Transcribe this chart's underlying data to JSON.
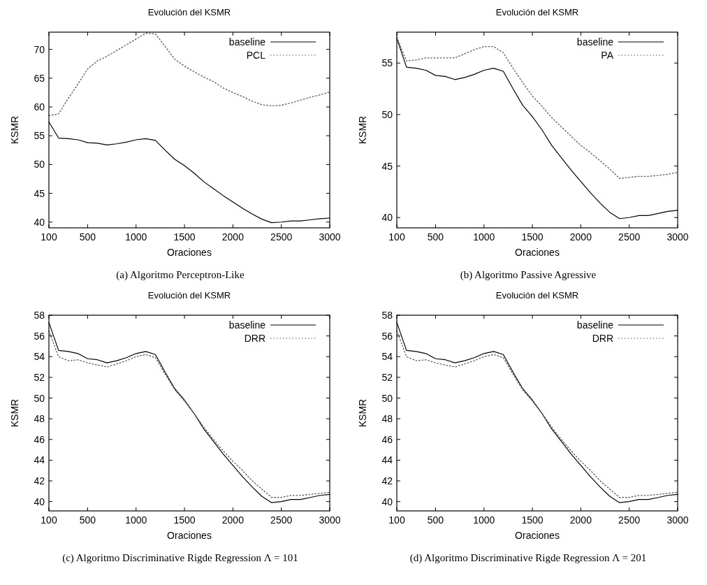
{
  "chart_data": [
    {
      "type": "line",
      "title": "Evolución del KSMR",
      "xlabel": "Oraciones",
      "ylabel": "KSMR",
      "x": [
        100,
        200,
        300,
        400,
        500,
        600,
        700,
        800,
        900,
        1000,
        1100,
        1200,
        1300,
        1400,
        1500,
        1600,
        1700,
        1800,
        1900,
        2000,
        2100,
        2200,
        2300,
        2400,
        2500,
        2600,
        2700,
        2800,
        2900,
        3000
      ],
      "xlim": [
        100,
        3000
      ],
      "xticks": [
        100,
        500,
        1000,
        1500,
        2000,
        2500,
        3000
      ],
      "ylim": [
        39,
        73
      ],
      "yticks": [
        40,
        45,
        50,
        55,
        60,
        65,
        70
      ],
      "legend": "top right",
      "annotations": [
        "(a) Algoritmo Perceptron-Like"
      ],
      "series": [
        {
          "name": "baseline",
          "color": "#000000",
          "line_style": "solid",
          "values": [
            57.4,
            54.6,
            54.5,
            54.3,
            53.8,
            53.7,
            53.4,
            53.6,
            53.9,
            54.3,
            54.5,
            54.2,
            52.5,
            50.9,
            49.8,
            48.5,
            47.0,
            45.8,
            44.6,
            43.5,
            42.4,
            41.4,
            40.5,
            39.9,
            40.0,
            40.2,
            40.2,
            40.4,
            40.6,
            40.7
          ]
        },
        {
          "name": "PCL",
          "color": "#555555",
          "line_style": "dotted",
          "values": [
            58.5,
            58.8,
            61.5,
            64.0,
            66.6,
            68.0,
            68.8,
            69.8,
            70.8,
            71.8,
            72.8,
            72.7,
            70.5,
            68.3,
            67.1,
            66.1,
            65.2,
            64.4,
            63.3,
            62.5,
            61.8,
            61.0,
            60.4,
            60.2,
            60.3,
            60.7,
            61.2,
            61.7,
            62.1,
            62.6
          ]
        }
      ]
    },
    {
      "type": "line",
      "title": "Evolución del KSMR",
      "xlabel": "Oraciones",
      "ylabel": "KSMR",
      "x": [
        100,
        200,
        300,
        400,
        500,
        600,
        700,
        800,
        900,
        1000,
        1100,
        1200,
        1300,
        1400,
        1500,
        1600,
        1700,
        1800,
        1900,
        2000,
        2100,
        2200,
        2300,
        2400,
        2500,
        2600,
        2700,
        2800,
        2900,
        3000
      ],
      "xlim": [
        100,
        3000
      ],
      "xticks": [
        100,
        500,
        1000,
        1500,
        2000,
        2500,
        3000
      ],
      "ylim": [
        39,
        58
      ],
      "yticks": [
        40,
        45,
        50,
        55
      ],
      "legend": "top right",
      "annotations": [
        "(b) Algoritmo Passive Agressive"
      ],
      "series": [
        {
          "name": "baseline",
          "color": "#000000",
          "line_style": "solid",
          "values": [
            57.4,
            54.6,
            54.5,
            54.3,
            53.8,
            53.7,
            53.4,
            53.6,
            53.9,
            54.3,
            54.5,
            54.2,
            52.5,
            50.9,
            49.8,
            48.5,
            47.0,
            45.8,
            44.6,
            43.5,
            42.4,
            41.4,
            40.5,
            39.9,
            40.0,
            40.2,
            40.2,
            40.4,
            40.6,
            40.7
          ]
        },
        {
          "name": "PA",
          "color": "#555555",
          "line_style": "dotted",
          "values": [
            57.5,
            55.2,
            55.3,
            55.5,
            55.5,
            55.5,
            55.5,
            55.9,
            56.3,
            56.6,
            56.6,
            56.0,
            54.5,
            53.1,
            51.8,
            50.8,
            49.7,
            48.8,
            47.9,
            47.0,
            46.3,
            45.5,
            44.7,
            43.8,
            43.9,
            44.0,
            44.0,
            44.1,
            44.2,
            44.4
          ]
        }
      ]
    },
    {
      "type": "line",
      "title": "Evolución del KSMR",
      "xlabel": "Oraciones",
      "ylabel": "KSMR",
      "x": [
        100,
        200,
        300,
        400,
        500,
        600,
        700,
        800,
        900,
        1000,
        1100,
        1200,
        1300,
        1400,
        1500,
        1600,
        1700,
        1800,
        1900,
        2000,
        2100,
        2200,
        2300,
        2400,
        2500,
        2600,
        2700,
        2800,
        2900,
        3000
      ],
      "xlim": [
        100,
        3000
      ],
      "xticks": [
        100,
        500,
        1000,
        1500,
        2000,
        2500,
        3000
      ],
      "ylim": [
        39.1,
        58
      ],
      "yticks": [
        40,
        42,
        44,
        46,
        48,
        50,
        52,
        54,
        56,
        58
      ],
      "legend": "top right",
      "annotations": [
        "(c) Algoritmo Discriminative Rigde Regression Λ = 101"
      ],
      "series": [
        {
          "name": "baseline",
          "color": "#000000",
          "line_style": "solid",
          "values": [
            57.3,
            54.6,
            54.5,
            54.3,
            53.8,
            53.7,
            53.4,
            53.6,
            53.9,
            54.3,
            54.5,
            54.2,
            52.5,
            50.9,
            49.8,
            48.5,
            47.0,
            45.8,
            44.6,
            43.5,
            42.4,
            41.4,
            40.5,
            39.9,
            40.0,
            40.2,
            40.2,
            40.4,
            40.6,
            40.7
          ]
        },
        {
          "name": "DRR",
          "color": "#555555",
          "line_style": "dotted",
          "values": [
            56.5,
            54.0,
            53.6,
            53.7,
            53.4,
            53.2,
            53.0,
            53.3,
            53.6,
            54.0,
            54.2,
            53.9,
            52.3,
            50.8,
            49.7,
            48.5,
            47.2,
            46.0,
            44.9,
            43.9,
            43.0,
            42.0,
            41.2,
            40.4,
            40.4,
            40.6,
            40.6,
            40.7,
            40.8,
            40.9
          ]
        }
      ]
    },
    {
      "type": "line",
      "title": "Evolución del KSMR",
      "xlabel": "Oraciones",
      "ylabel": "KSMR",
      "x": [
        100,
        200,
        300,
        400,
        500,
        600,
        700,
        800,
        900,
        1000,
        1100,
        1200,
        1300,
        1400,
        1500,
        1600,
        1700,
        1800,
        1900,
        2000,
        2100,
        2200,
        2300,
        2400,
        2500,
        2600,
        2700,
        2800,
        2900,
        3000
      ],
      "xlim": [
        100,
        3000
      ],
      "xticks": [
        100,
        500,
        1000,
        1500,
        2000,
        2500,
        3000
      ],
      "ylim": [
        39.1,
        58
      ],
      "yticks": [
        40,
        42,
        44,
        46,
        48,
        50,
        52,
        54,
        56,
        58
      ],
      "legend": "top right",
      "annotations": [
        "(d) Algoritmo Discriminative Rigde Regression Λ = 201"
      ],
      "series": [
        {
          "name": "baseline",
          "color": "#000000",
          "line_style": "solid",
          "values": [
            57.3,
            54.6,
            54.5,
            54.3,
            53.8,
            53.7,
            53.4,
            53.6,
            53.9,
            54.3,
            54.5,
            54.2,
            52.5,
            50.9,
            49.8,
            48.5,
            47.0,
            45.8,
            44.6,
            43.5,
            42.4,
            41.4,
            40.5,
            39.9,
            40.0,
            40.2,
            40.2,
            40.4,
            40.6,
            40.7
          ]
        },
        {
          "name": "DRR",
          "color": "#555555",
          "line_style": "dotted",
          "values": [
            56.5,
            54.0,
            53.6,
            53.7,
            53.4,
            53.2,
            53.0,
            53.3,
            53.6,
            54.0,
            54.2,
            53.9,
            52.3,
            50.8,
            49.7,
            48.5,
            47.2,
            46.0,
            44.9,
            43.9,
            43.0,
            42.0,
            41.2,
            40.4,
            40.4,
            40.6,
            40.6,
            40.7,
            40.8,
            40.9
          ]
        }
      ]
    }
  ]
}
